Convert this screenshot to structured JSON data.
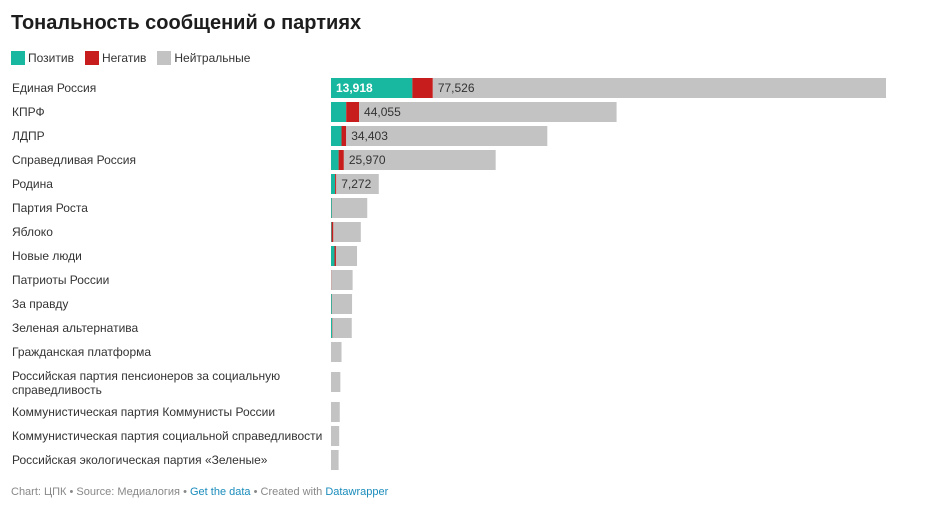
{
  "title": "Тональность сообщений о партиях",
  "legend": {
    "positive": "Позитив",
    "negative": "Негатив",
    "neutral": "Нейтральные"
  },
  "colors": {
    "positive": "#17b89f",
    "negative": "#c71e1d",
    "neutral": "#c3c3c3"
  },
  "footer": {
    "prefix": "Chart: ЦПК • Source: Медиалогия • ",
    "get_data": "Get the data",
    "middle": " • Created with ",
    "tool": "Datawrapper"
  },
  "chart_data": {
    "type": "bar",
    "stacked": true,
    "orientation": "horizontal",
    "title": "Тональность сообщений о партиях",
    "categories": [
      [
        "Единая Россия"
      ],
      [
        "КПРФ"
      ],
      [
        "ЛДПР"
      ],
      [
        "Справедливая Россия"
      ],
      [
        "Родина"
      ],
      [
        "Партия Роста"
      ],
      [
        "Яблоко"
      ],
      [
        "Новые люди"
      ],
      [
        "Патриоты России"
      ],
      [
        "За правду"
      ],
      [
        "Зеленая альтернатива"
      ],
      [
        "Гражданская платформа"
      ],
      [
        "Российская партия пенсионеров за социальную",
        "справедливость"
      ],
      [
        "Коммунистическая партия Коммунисты России"
      ],
      [
        "Коммунистическая партия социальной справедливости"
      ],
      [
        "Российская экологическая партия «Зеленые»"
      ]
    ],
    "series": [
      {
        "name": "Позитив",
        "values": [
          13918,
          2600,
          1800,
          1300,
          700,
          150,
          100,
          600,
          0,
          150,
          200,
          0,
          0,
          0,
          0,
          0
        ]
      },
      {
        "name": "Негатив",
        "values": [
          3500,
          2200,
          800,
          900,
          200,
          50,
          300,
          250,
          50,
          50,
          50,
          0,
          0,
          0,
          0,
          0
        ]
      },
      {
        "name": "Нейтральные",
        "values": [
          77526,
          44055,
          34403,
          25970,
          7272,
          6000,
          4700,
          3600,
          3650,
          3400,
          3300,
          1800,
          1600,
          1500,
          1400,
          1300
        ]
      }
    ],
    "labels": {
      "positive": [
        "13,918",
        "",
        "",
        "",
        "",
        "",
        "",
        "",
        "",
        "",
        "",
        "",
        "",
        "",
        "",
        ""
      ],
      "neutral": [
        "77,526",
        "44,055",
        "34,403",
        "25,970",
        "7,272",
        "",
        "",
        "",
        "",
        "",
        "",
        "",
        "",
        "",
        "",
        ""
      ]
    },
    "xlim": [
      0,
      95000
    ],
    "grid": false,
    "legend_position": "top-left"
  }
}
